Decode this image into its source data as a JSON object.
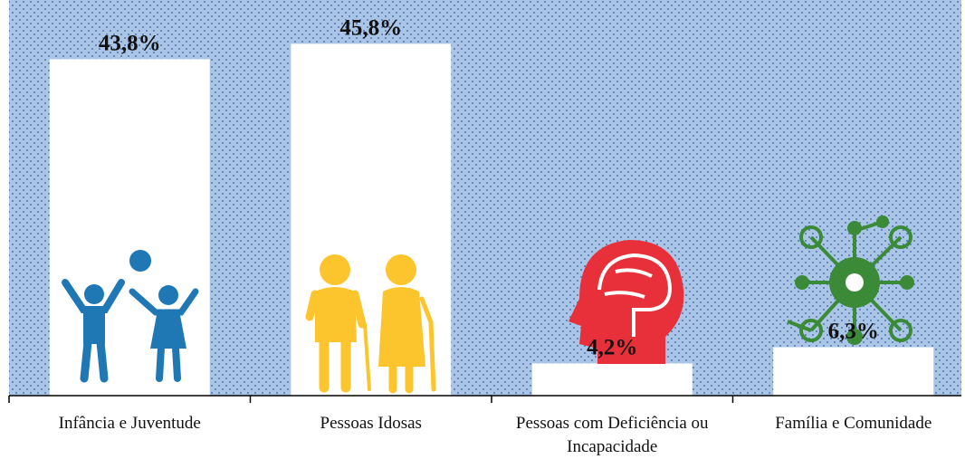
{
  "chart_data": {
    "type": "bar",
    "categories": [
      "Infância e Juventude",
      "Pessoas Idosas",
      "Pessoas com Deficiência ou Incapacidade",
      "Família e Comunidade"
    ],
    "values": [
      43.8,
      45.8,
      4.2,
      6.3
    ],
    "value_labels": [
      "43,8%",
      "45,8%",
      "4,2%",
      "6,3%"
    ],
    "color": "#ffffff",
    "ylim": [
      0,
      51.5
    ]
  }
}
